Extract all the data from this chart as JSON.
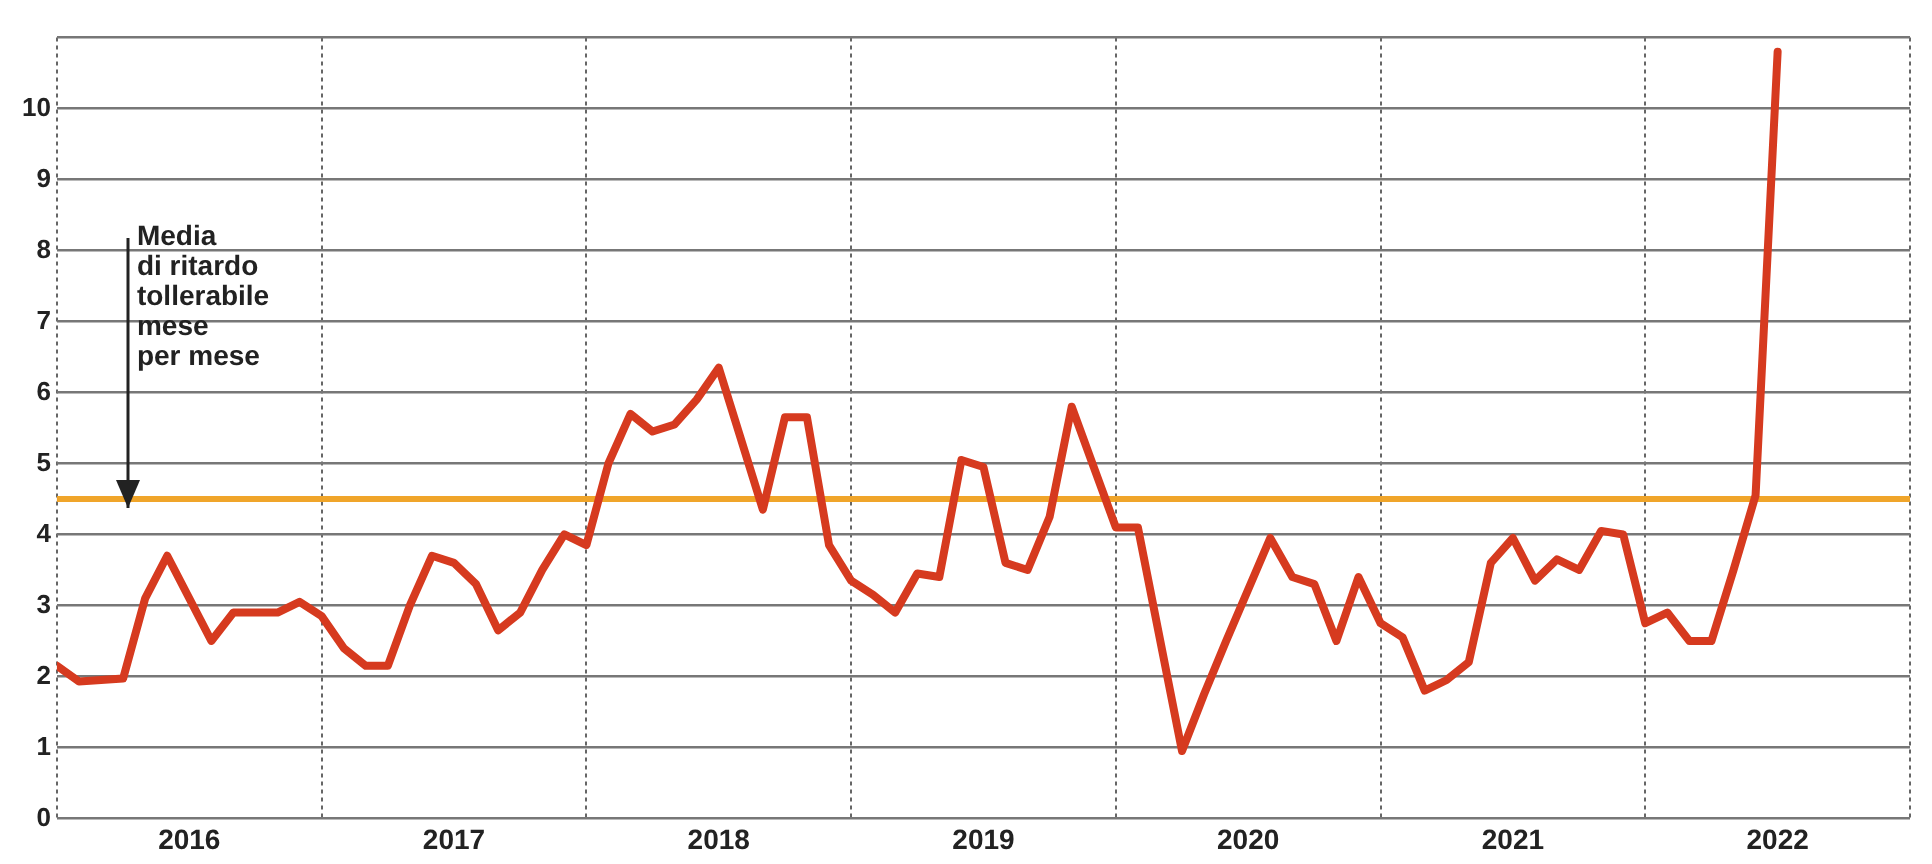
{
  "chart_data": {
    "type": "line",
    "x": [
      "2016-01",
      "2016-02",
      "2016-04",
      "2016-05",
      "2016-06",
      "2016-08",
      "2016-09",
      "2016-11",
      "2016-12",
      "2017-01",
      "2017-02",
      "2017-03",
      "2017-04",
      "2017-05",
      "2017-06",
      "2017-07",
      "2017-08",
      "2017-09",
      "2017-10",
      "2017-11",
      "2017-12",
      "2018-01",
      "2018-02",
      "2018-03",
      "2018-04",
      "2018-05",
      "2018-06",
      "2018-07",
      "2018-09",
      "2018-10",
      "2018-11",
      "2018-12",
      "2019-01",
      "2019-02",
      "2019-03",
      "2019-04",
      "2019-05",
      "2019-06",
      "2019-07",
      "2019-08",
      "2019-09",
      "2019-10",
      "2019-11",
      "2019-12",
      "2020-01",
      "2020-02",
      "2020-04",
      "2020-05",
      "2020-06",
      "2020-08",
      "2020-09",
      "2020-10",
      "2020-11",
      "2020-12",
      "2021-01",
      "2021-02",
      "2021-03",
      "2021-04",
      "2021-05",
      "2021-06",
      "2021-07",
      "2021-08",
      "2021-09",
      "2021-10",
      "2021-11",
      "2021-12",
      "2022-01",
      "2022-02",
      "2022-03",
      "2022-04",
      "2022-05",
      "2022-06",
      "2022-07"
    ],
    "series": [
      {
        "color": "#d63a1f",
        "values": [
          2.15,
          1.93,
          1.97,
          3.1,
          3.7,
          2.5,
          2.9,
          2.9,
          3.05,
          2.85,
          2.4,
          2.15,
          2.15,
          3.0,
          3.7,
          3.6,
          3.3,
          2.65,
          2.9,
          3.5,
          4.0,
          3.85,
          5.0,
          5.7,
          5.45,
          5.55,
          5.9,
          6.35,
          4.35,
          5.65,
          5.65,
          3.85,
          3.35,
          3.15,
          2.9,
          3.45,
          3.4,
          5.05,
          4.95,
          3.6,
          3.5,
          4.25,
          5.8,
          4.95,
          4.1,
          4.1,
          0.95,
          1.75,
          2.5,
          3.95,
          3.4,
          3.3,
          2.5,
          3.4,
          2.75,
          2.55,
          1.8,
          1.95,
          2.2,
          3.6,
          3.95,
          3.35,
          3.65,
          3.5,
          4.05,
          4.0,
          2.75,
          2.9,
          2.5,
          2.5,
          3.5,
          4.55,
          10.8
        ]
      }
    ],
    "xlim": [
      "2016-01",
      "2023-01"
    ],
    "xticks": [
      {
        "value": "2016-01",
        "label": null
      },
      {
        "value": "2016-07",
        "label": "2016"
      },
      {
        "value": "2017-01",
        "label": null
      },
      {
        "value": "2017-07",
        "label": "2017"
      },
      {
        "value": "2018-01",
        "label": null
      },
      {
        "value": "2018-07",
        "label": "2018"
      },
      {
        "value": "2019-01",
        "label": null
      },
      {
        "value": "2019-07",
        "label": "2019"
      },
      {
        "value": "2020-01",
        "label": null
      },
      {
        "value": "2020-07",
        "label": "2020"
      },
      {
        "value": "2021-01",
        "label": null
      },
      {
        "value": "2021-07",
        "label": "2021"
      },
      {
        "value": "2022-01",
        "label": null
      },
      {
        "value": "2022-07",
        "label": "2022"
      },
      {
        "value": "2023-01",
        "label": null
      }
    ],
    "ylim": [
      0,
      11
    ],
    "yticks": [
      0,
      1,
      2,
      3,
      4,
      5,
      6,
      7,
      8,
      9,
      10,
      {
        "value": 11,
        "label": null
      }
    ],
    "ref_lines": [
      {
        "axis": "y",
        "value": 4.5,
        "label": "Media\ndi ritardo\ntollerabile\nmese\nper mese",
        "color": "#f0a52a"
      }
    ],
    "grid": true,
    "legend": false,
    "marker": "none",
    "line_style": "solid"
  }
}
